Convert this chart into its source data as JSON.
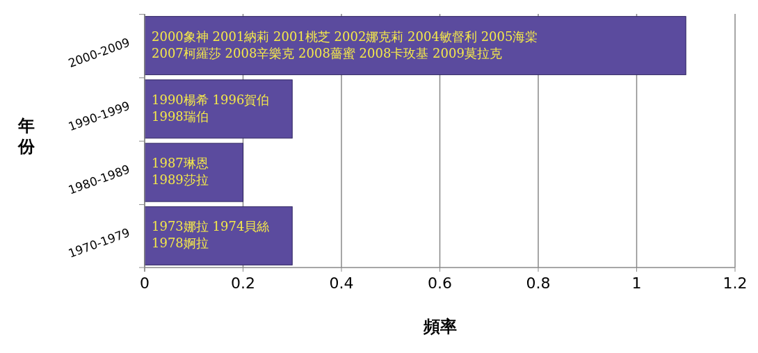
{
  "chart_data": {
    "type": "bar",
    "orientation": "horizontal",
    "xlabel": "頻率",
    "ylabel": "年份",
    "categories": [
      "2000-2009",
      "1990-1999",
      "1980-1989",
      "1970-1979"
    ],
    "values": [
      1.1,
      0.3,
      0.2,
      0.3
    ],
    "annotations": [
      "2000象神  2001納莉  2001桃芝  2002娜克莉  2004敏督利  2005海棠\n2007柯羅莎  2008辛樂克  2008薔蜜  2008卡玫基  2009莫拉克",
      "1990楊希 1996賀伯\n1998瑞伯",
      "1987琳恩\n1989莎拉",
      "1973娜拉 1974貝絲\n1978婀拉"
    ],
    "color": "#5b4b9e",
    "xlim": [
      0,
      1.2
    ],
    "xticks": [
      0,
      0.2,
      0.4,
      0.6,
      0.8,
      1,
      1.2
    ],
    "grid": "x"
  }
}
